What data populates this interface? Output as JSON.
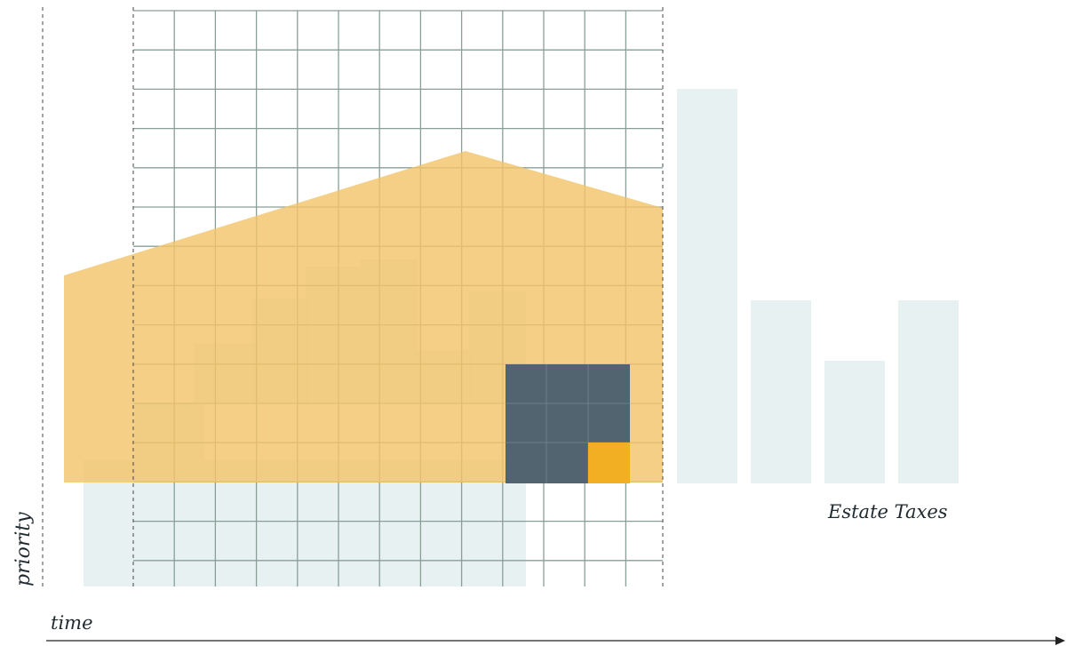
{
  "labels": {
    "y_axis": "priority",
    "x_axis": "time",
    "category": "Estate Taxes"
  },
  "colors": {
    "grid": "#8a9e98",
    "guide": "#444444",
    "house": "#f2c46a",
    "light_block": "#d6e6e6",
    "dark_block": "#526470",
    "accent": "#f3af24",
    "axis": "#222222",
    "text": "#1f2a30"
  }
}
